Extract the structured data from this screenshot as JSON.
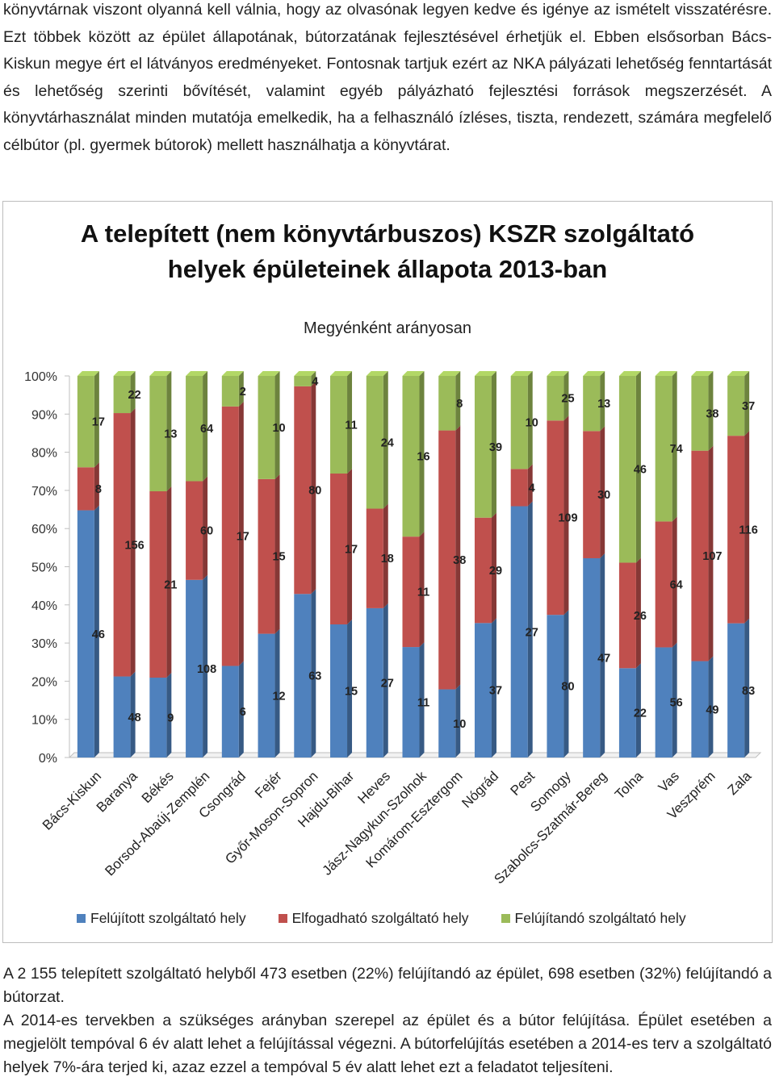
{
  "paragraphs": {
    "top": "könyvtárnak viszont olyanná kell válnia, hogy az olvasónak legyen kedve és igénye az ismételt visszatérésre. Ezt többek között az épület állapotának, bútorzatának fejlesztésével érhetjük el. Ebben elsősorban Bács-Kiskun megye ért el látványos eredményeket. Fontosnak tartjuk ezért az NKA pályázati lehetőség fenntartását és lehetőség szerinti bővítését, valamint egyéb pályázható fejlesztési források megszerzését. A könyvtárhasználat minden mutatója emelkedik, ha a felhasználó ízléses, tiszta, rendezett, számára megfelelő célbútor (pl. gyermek bútorok) mellett használhatja a könyvtárat.",
    "bottom_1": "A 2 155 telepített szolgáltató helyből 473 esetben (22%) felújítandó az épület, 698 esetben (32%) felújítandó a bútorzat.",
    "bottom_2": "A 2014-es tervekben a szükséges arányban szerepel az épület és a bútor felújítása. Épület esetében a megjelölt tempóval 6 év alatt lehet a felújítással végezni.  A bútorfelújítás esetében a 2014-es terv a szolgáltató helyek 7%-ára terjed ki, azaz ezzel a tempóval 5 év alatt lehet ezt a feladatot teljesíteni."
  },
  "chart_data": {
    "type": "bar",
    "stacked": "100%",
    "title_line1": "A telepített (nem könyvtárbuszos) KSZR szolgáltató",
    "title_line2": "helyek épületeinek állapota 2013-ban",
    "subtitle": "Megyénként arányosan",
    "y_ticks": [
      "0%",
      "10%",
      "20%",
      "30%",
      "40%",
      "50%",
      "60%",
      "70%",
      "80%",
      "90%",
      "100%"
    ],
    "ylim": [
      0,
      100
    ],
    "categories": [
      "Bács-Kiskun",
      "Baranya",
      "Békés",
      "Borsod-Abaúj-Zemplén",
      "Csongrád",
      "Fejér",
      "Győr-Moson-Sopron",
      "Hajdu-Bihar",
      "Heves",
      "Jász-Nagykun-Szolnok",
      "Komárom-Esztergom",
      "Nógrád",
      "Pest",
      "Somogy",
      "Szabolcs-Szatmár-Bereg",
      "Tolna",
      "Vas",
      "Veszprém",
      "Zala"
    ],
    "series": [
      {
        "name": "Felújított szolgáltató hely",
        "color": "#4f81bd",
        "values": [
          46,
          48,
          9,
          108,
          6,
          12,
          63,
          15,
          27,
          11,
          10,
          37,
          27,
          80,
          47,
          22,
          56,
          49,
          83
        ]
      },
      {
        "name": "Elfogadható szolgáltató hely",
        "color": "#c0504d",
        "values": [
          8,
          156,
          21,
          60,
          17,
          15,
          80,
          17,
          18,
          11,
          38,
          29,
          4,
          109,
          30,
          26,
          64,
          107,
          116
        ]
      },
      {
        "name": "Felújítandó szolgáltató hely",
        "color": "#9bbb59",
        "values": [
          17,
          22,
          13,
          64,
          2,
          10,
          4,
          11,
          24,
          16,
          8,
          39,
          10,
          25,
          13,
          46,
          74,
          38,
          37
        ]
      }
    ],
    "legend_position": "bottom",
    "grid": false
  }
}
